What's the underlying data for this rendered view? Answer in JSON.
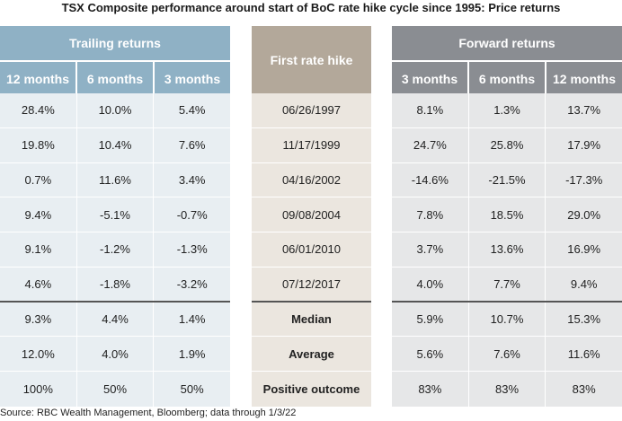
{
  "title": "TSX Composite performance around start of BoC rate hike cycle since 1995: Price returns",
  "source": "Source: RBC Wealth Management, Bloomberg; data through 1/3/22",
  "colors": {
    "trailing_header": "#8fb1c5",
    "hike_header": "#b3a89a",
    "forward_header": "#8a8d92",
    "trailing_body": "#e8eef2",
    "hike_body": "#ebe6df",
    "forward_body": "#e6e7e8"
  },
  "chart_data": {
    "type": "table",
    "title": "TSX Composite performance around start of BoC rate hike cycle since 1995: Price returns",
    "groups": {
      "trailing": {
        "label": "Trailing returns",
        "columns": [
          "12 months",
          "6 months",
          "3 months"
        ]
      },
      "hike": {
        "label": "First rate hike"
      },
      "forward": {
        "label": "Forward returns",
        "columns": [
          "3 months",
          "6 months",
          "12 months"
        ]
      }
    },
    "rows": [
      {
        "hike": "06/26/1997",
        "trailing": [
          "28.4%",
          "10.0%",
          "5.4%"
        ],
        "forward": [
          "8.1%",
          "1.3%",
          "13.7%"
        ]
      },
      {
        "hike": "11/17/1999",
        "trailing": [
          "19.8%",
          "10.4%",
          "7.6%"
        ],
        "forward": [
          "24.7%",
          "25.8%",
          "17.9%"
        ]
      },
      {
        "hike": "04/16/2002",
        "trailing": [
          "0.7%",
          "11.6%",
          "3.4%"
        ],
        "forward": [
          "-14.6%",
          "-21.5%",
          "-17.3%"
        ]
      },
      {
        "hike": "09/08/2004",
        "trailing": [
          "9.4%",
          "-5.1%",
          "-0.7%"
        ],
        "forward": [
          "7.8%",
          "18.5%",
          "29.0%"
        ]
      },
      {
        "hike": "06/01/2010",
        "trailing": [
          "9.1%",
          "-1.2%",
          "-1.3%"
        ],
        "forward": [
          "3.7%",
          "13.6%",
          "16.9%"
        ]
      },
      {
        "hike": "07/12/2017",
        "trailing": [
          "4.6%",
          "-1.8%",
          "-3.2%"
        ],
        "forward": [
          "4.0%",
          "7.7%",
          "9.4%"
        ]
      }
    ],
    "summary": [
      {
        "label": "Median",
        "trailing": [
          "9.3%",
          "4.4%",
          "1.4%"
        ],
        "forward": [
          "5.9%",
          "10.7%",
          "15.3%"
        ]
      },
      {
        "label": "Average",
        "trailing": [
          "12.0%",
          "4.0%",
          "1.9%"
        ],
        "forward": [
          "5.6%",
          "7.6%",
          "11.6%"
        ]
      },
      {
        "label": "Positive outcome",
        "trailing": [
          "100%",
          "50%",
          "50%"
        ],
        "forward": [
          "83%",
          "83%",
          "83%"
        ]
      }
    ]
  }
}
